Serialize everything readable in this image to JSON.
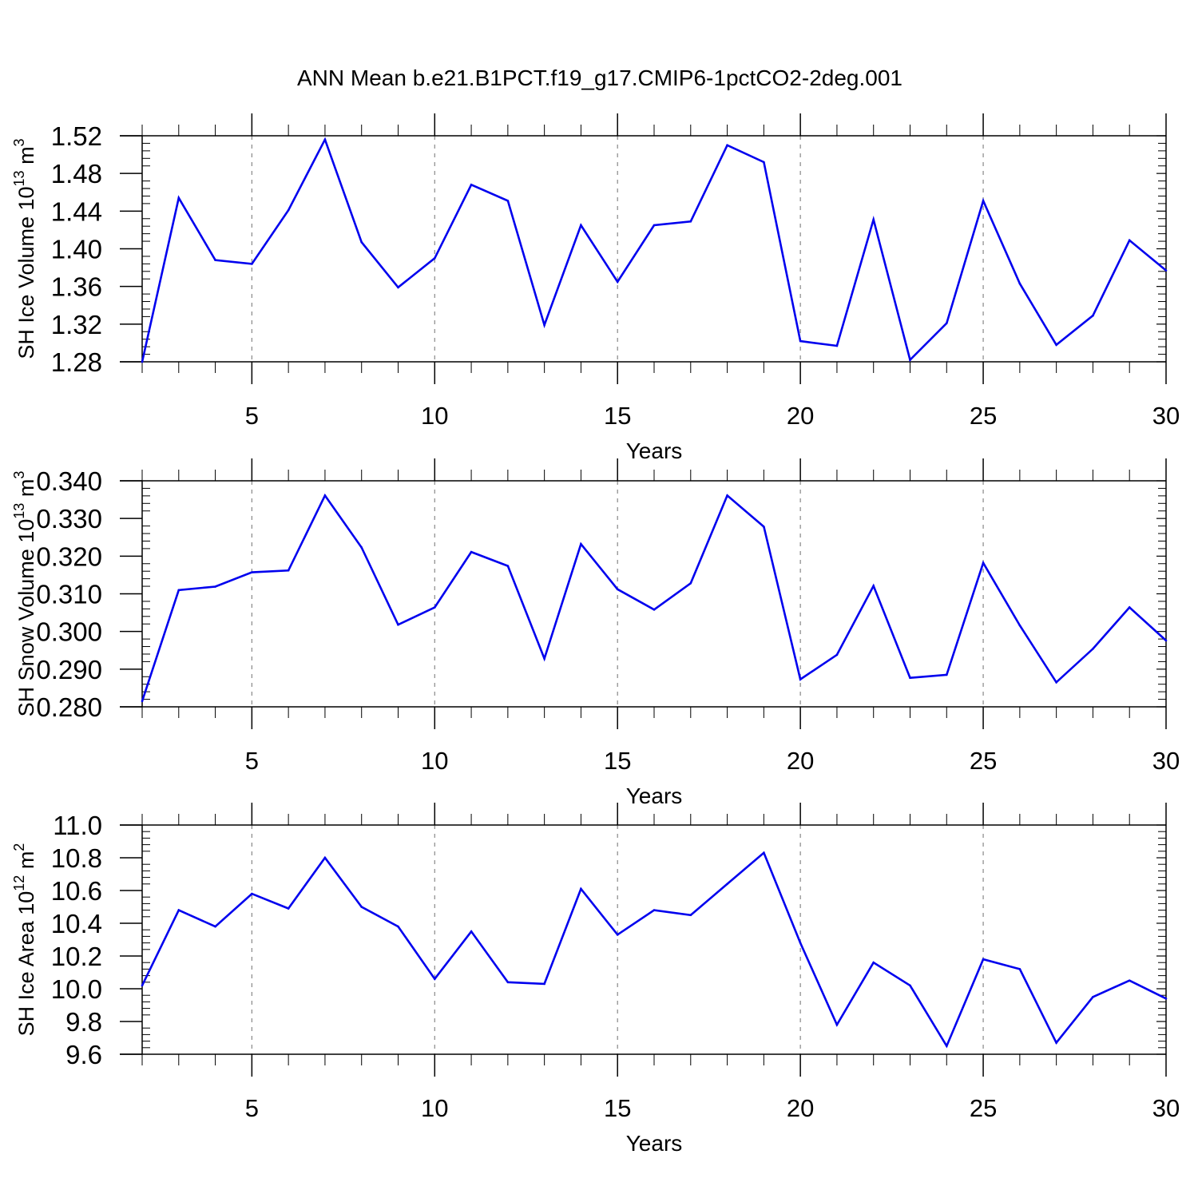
{
  "title": "ANN Mean b.e21.B1PCT.f19_g17.CMIP6-1pctCO2-2deg.001",
  "chart_data": [
    {
      "type": "line",
      "xlabel": "Years",
      "ylabel_text": "SH Ice Volume 10",
      "ylabel_exp": "13",
      "ylabel_unit": " m",
      "ylabel_unit_exp": "3",
      "xlim": [
        2,
        30
      ],
      "ylim": [
        1.28,
        1.52
      ],
      "xticks": [
        5,
        10,
        15,
        20,
        25,
        30
      ],
      "yticks": [
        "1.28",
        "1.32",
        "1.36",
        "1.40",
        "1.44",
        "1.48",
        "1.52"
      ],
      "grid": "vertical dashed at major x ticks",
      "series_color": "#0000ee",
      "x": [
        2,
        3,
        4,
        5,
        6,
        7,
        8,
        9,
        10,
        11,
        12,
        13,
        14,
        15,
        16,
        17,
        18,
        19,
        20,
        21,
        22,
        23,
        24,
        25,
        26,
        27,
        28,
        29,
        30
      ],
      "values": [
        1.28,
        1.454,
        1.388,
        1.384,
        1.441,
        1.516,
        1.407,
        1.359,
        1.39,
        1.468,
        1.451,
        1.319,
        1.425,
        1.365,
        1.425,
        1.429,
        1.51,
        1.492,
        1.302,
        1.297,
        1.431,
        1.282,
        1.321,
        1.451,
        1.363,
        1.298,
        1.329,
        1.409,
        1.377
      ]
    },
    {
      "type": "line",
      "xlabel": "Years",
      "ylabel_text": "SH Snow Volume 10",
      "ylabel_exp": "13",
      "ylabel_unit": " m",
      "ylabel_unit_exp": "3",
      "xlim": [
        2,
        30
      ],
      "ylim": [
        0.28,
        0.34
      ],
      "xticks": [
        5,
        10,
        15,
        20,
        25,
        30
      ],
      "yticks": [
        "0.280",
        "0.290",
        "0.300",
        "0.310",
        "0.320",
        "0.330",
        "0.340"
      ],
      "grid": "vertical dashed at major x ticks",
      "series_color": "#0000ee",
      "x": [
        2,
        3,
        4,
        5,
        6,
        7,
        8,
        9,
        10,
        11,
        12,
        13,
        14,
        15,
        16,
        17,
        18,
        19,
        20,
        21,
        22,
        23,
        24,
        25,
        26,
        27,
        28,
        29,
        30
      ],
      "values": [
        0.2815,
        0.311,
        0.3119,
        0.3157,
        0.3162,
        0.3361,
        0.3223,
        0.3018,
        0.3064,
        0.3211,
        0.3174,
        0.2928,
        0.3232,
        0.3112,
        0.3058,
        0.3128,
        0.3361,
        0.3278,
        0.2873,
        0.2938,
        0.3121,
        0.2877,
        0.2885,
        0.3182,
        0.3016,
        0.2865,
        0.2954,
        0.3064,
        0.2976
      ]
    },
    {
      "type": "line",
      "xlabel": "Years",
      "ylabel_text": "SH Ice Area 10",
      "ylabel_exp": "12",
      "ylabel_unit": " m",
      "ylabel_unit_exp": "2",
      "xlim": [
        2,
        30
      ],
      "ylim": [
        9.6,
        11.0
      ],
      "xticks": [
        5,
        10,
        15,
        20,
        25,
        30
      ],
      "yticks": [
        "9.6",
        "9.8",
        "10.0",
        "10.2",
        "10.4",
        "10.6",
        "10.8",
        "11.0"
      ],
      "grid": "vertical dashed at major x ticks",
      "series_color": "#0000ee",
      "x": [
        2,
        3,
        4,
        5,
        6,
        7,
        8,
        9,
        10,
        11,
        12,
        13,
        14,
        15,
        16,
        17,
        18,
        19,
        20,
        21,
        22,
        23,
        24,
        25,
        26,
        27,
        28,
        29,
        30
      ],
      "values": [
        10.02,
        10.48,
        10.38,
        10.58,
        10.49,
        10.8,
        10.5,
        10.38,
        10.06,
        10.35,
        10.04,
        10.03,
        10.61,
        10.33,
        10.48,
        10.45,
        10.64,
        10.83,
        10.28,
        9.78,
        10.16,
        10.02,
        9.65,
        10.18,
        10.12,
        9.67,
        9.95,
        10.05,
        9.94
      ]
    }
  ]
}
